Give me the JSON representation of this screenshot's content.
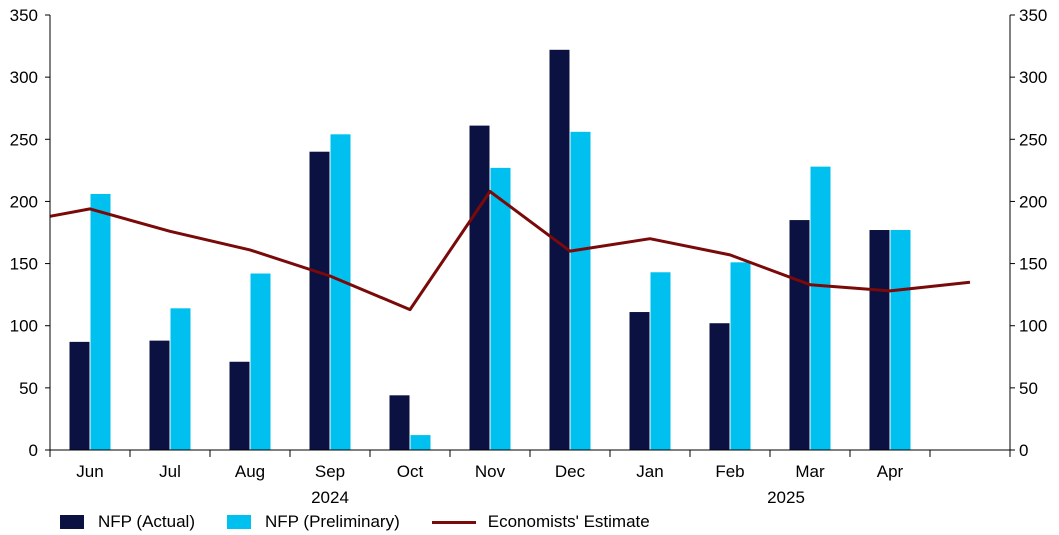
{
  "chart_data": {
    "type": "bar",
    "categories": [
      "Jun",
      "Jul",
      "Aug",
      "Sep",
      "Oct",
      "Nov",
      "Dec",
      "Jan",
      "Feb",
      "Mar",
      "Apr",
      ""
    ],
    "year_labels": [
      {
        "label": "2024",
        "category_index": 3
      },
      {
        "label": "2025",
        "category_index": 8.7
      }
    ],
    "series": [
      {
        "name": "NFP (Actual)",
        "kind": "bar",
        "color": "#0b1140",
        "values": [
          87,
          88,
          71,
          240,
          44,
          261,
          322,
          111,
          102,
          185,
          177,
          null
        ]
      },
      {
        "name": "NFP (Preliminary)",
        "kind": "bar",
        "color": "#00c0f0",
        "values": [
          206,
          114,
          142,
          254,
          12,
          227,
          256,
          143,
          151,
          228,
          177,
          null
        ]
      },
      {
        "name": "Economists' Estimate",
        "kind": "line",
        "color": "#7a0a0a",
        "x": [
          -0.5,
          0,
          1,
          2,
          3,
          4,
          5,
          6,
          7,
          8,
          9,
          10,
          11
        ],
        "values": [
          188,
          194,
          176,
          161,
          140,
          113,
          208,
          160,
          170,
          157,
          133,
          128,
          135
        ]
      }
    ],
    "ylim": [
      0,
      350
    ],
    "yticks": [
      0,
      50,
      100,
      150,
      200,
      250,
      300,
      350
    ],
    "y_axes": [
      "left",
      "right"
    ],
    "grid": false,
    "legend": "bottom"
  }
}
